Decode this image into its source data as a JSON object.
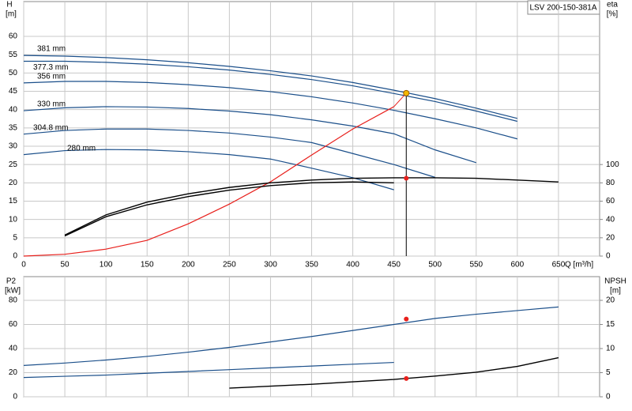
{
  "chart_data": [
    {
      "type": "line",
      "title": "LSV 200-150-381A",
      "ylabel": "H",
      "yunit": "[m]",
      "y2label": "eta",
      "y2unit": "[%]",
      "xlabel": "Q [m³/h]",
      "x": [
        0,
        50,
        100,
        150,
        200,
        250,
        300,
        350,
        400,
        450,
        500,
        550,
        600,
        650
      ],
      "xlim": [
        0,
        700
      ],
      "xticks": [
        0,
        50,
        100,
        150,
        200,
        250,
        300,
        350,
        400,
        450,
        500,
        550,
        600,
        650
      ],
      "ylim": [
        0,
        60
      ],
      "yticks": [
        0,
        5,
        10,
        15,
        20,
        25,
        30,
        35,
        40,
        45,
        50,
        55,
        60
      ],
      "y2lim": [
        0,
        240
      ],
      "y2ticks": [
        0,
        20,
        40,
        60,
        80,
        100
      ],
      "grid": true,
      "series": [
        {
          "name": "381 mm",
          "color": "#1b4f8a",
          "values": [
            54.8,
            54.6,
            54.2,
            53.6,
            52.8,
            51.8,
            50.6,
            49.2,
            47.4,
            45.3,
            43,
            40.4,
            37.6,
            null
          ]
        },
        {
          "name": "377.3 mm",
          "color": "#1b4f8a",
          "values": [
            53.2,
            53.2,
            52.9,
            52.4,
            51.7,
            50.8,
            49.6,
            48.2,
            46.5,
            44.4,
            42.2,
            39.6,
            36.8,
            null
          ]
        },
        {
          "name": "356 mm",
          "color": "#1b4f8a",
          "values": [
            47.3,
            47.7,
            47.7,
            47.4,
            46.8,
            46,
            44.9,
            43.5,
            41.8,
            39.8,
            37.5,
            35,
            32,
            null
          ]
        },
        {
          "name": "330 mm",
          "color": "#1b4f8a",
          "values": [
            39.7,
            40.5,
            40.8,
            40.7,
            40.3,
            39.6,
            38.6,
            37.2,
            35.5,
            33.4,
            29,
            25.5,
            null,
            null
          ]
        },
        {
          "name": "304.8 mm",
          "color": "#1b4f8a",
          "values": [
            33.3,
            34.3,
            34.7,
            34.7,
            34.3,
            33.6,
            32.5,
            31,
            28,
            25,
            21.5,
            null,
            null,
            null
          ]
        },
        {
          "name": "280 mm",
          "color": "#1b4f8a",
          "values": [
            27.7,
            28.8,
            29.1,
            29,
            28.5,
            27.7,
            26.5,
            24,
            21.4,
            18.1,
            null,
            null,
            null,
            null
          ]
        },
        {
          "color": "#e8201c",
          "values": [
            0,
            0.5,
            1.9,
            4.3,
            8.8,
            14.2,
            20.3,
            27.6,
            34.7,
            40.8,
            null,
            null,
            null,
            null
          ]
        },
        {
          "color": "#000000",
          "axis": "y2",
          "values": [
            null,
            23,
            45,
            59,
            68,
            75,
            80,
            83,
            85,
            85.5,
            85.5,
            85,
            83,
            81
          ]
        },
        {
          "color": "#000000",
          "axis": "y2",
          "values": [
            null,
            22,
            43,
            56,
            65,
            72,
            77,
            80,
            81,
            80,
            null,
            null,
            null,
            null
          ]
        }
      ],
      "operating_point": {
        "q": 465,
        "h": 44.5,
        "eta": 85
      }
    },
    {
      "type": "line",
      "ylabel": "P2",
      "yunit": "[kW]",
      "y2label": "NPSH",
      "y2unit": "[m]",
      "x": [
        0,
        50,
        100,
        150,
        200,
        250,
        300,
        350,
        400,
        450,
        500,
        550,
        600,
        650
      ],
      "xlim": [
        0,
        700
      ],
      "ylim": [
        0,
        80
      ],
      "yticks": [
        0,
        20,
        40,
        60,
        80
      ],
      "y2lim": [
        0,
        20
      ],
      "y2ticks": [
        0,
        5,
        10,
        15,
        20
      ],
      "grid": true,
      "series": [
        {
          "color": "#1b4f8a",
          "values": [
            26,
            28,
            30.5,
            33.5,
            37,
            41,
            45.5,
            50,
            55,
            60,
            65,
            68.5,
            71.5,
            74.5
          ]
        },
        {
          "color": "#1b4f8a",
          "values": [
            16,
            17,
            18,
            19.5,
            21,
            22.5,
            24,
            25.5,
            27,
            28.5,
            null,
            null,
            null,
            null
          ]
        },
        {
          "color": "#000000",
          "axis": "y2",
          "values": [
            null,
            null,
            null,
            null,
            null,
            1.8,
            2.2,
            2.6,
            3.1,
            3.6,
            4.3,
            5.1,
            6.3,
            8.1
          ]
        }
      ],
      "operating_point": {
        "q": 465,
        "p2": 64.5,
        "npsh": 3.8
      }
    }
  ]
}
